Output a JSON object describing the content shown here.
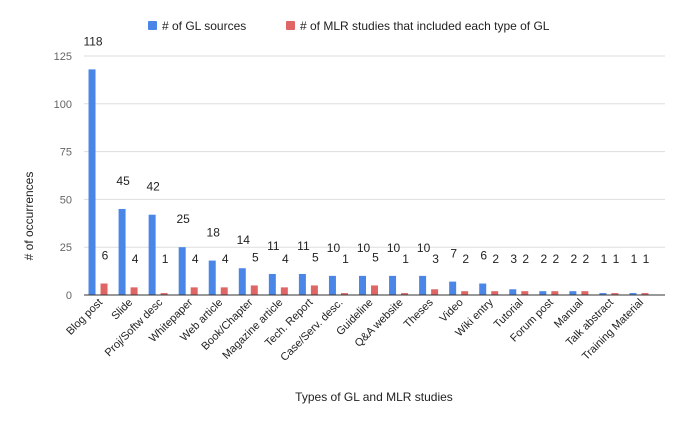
{
  "chart_data": {
    "type": "bar",
    "title": "",
    "xlabel": "Types of GL and MLR studies",
    "ylabel": "# of occurrences",
    "ylim": [
      0,
      125
    ],
    "yticks": [
      0,
      25,
      50,
      75,
      100,
      125
    ],
    "grid": true,
    "legend_position": "top",
    "categories": [
      "Blog post",
      "Slide",
      "Proj/Softw desc",
      "Whitepaper",
      "Web article",
      "Book/Chapter",
      "Magazine article",
      "Tech. Report",
      "Case/Serv. desc.",
      "Guideline",
      "Q&A website",
      "Theses",
      "Video",
      "Wiki entry",
      "Tutorial",
      "Forum post",
      "Manual",
      "Talk abstract",
      "Training Material"
    ],
    "series": [
      {
        "name": "# of GL sources",
        "color": "#4a86e8",
        "values": [
          118,
          45,
          42,
          25,
          18,
          14,
          11,
          11,
          10,
          10,
          10,
          10,
          7,
          6,
          3,
          2,
          2,
          1,
          1
        ]
      },
      {
        "name": "# of MLR studies that included each type of GL",
        "color": "#e06666",
        "values": [
          6,
          4,
          1,
          4,
          4,
          5,
          4,
          5,
          1,
          5,
          1,
          3,
          2,
          2,
          2,
          2,
          2,
          1,
          1
        ]
      }
    ]
  }
}
